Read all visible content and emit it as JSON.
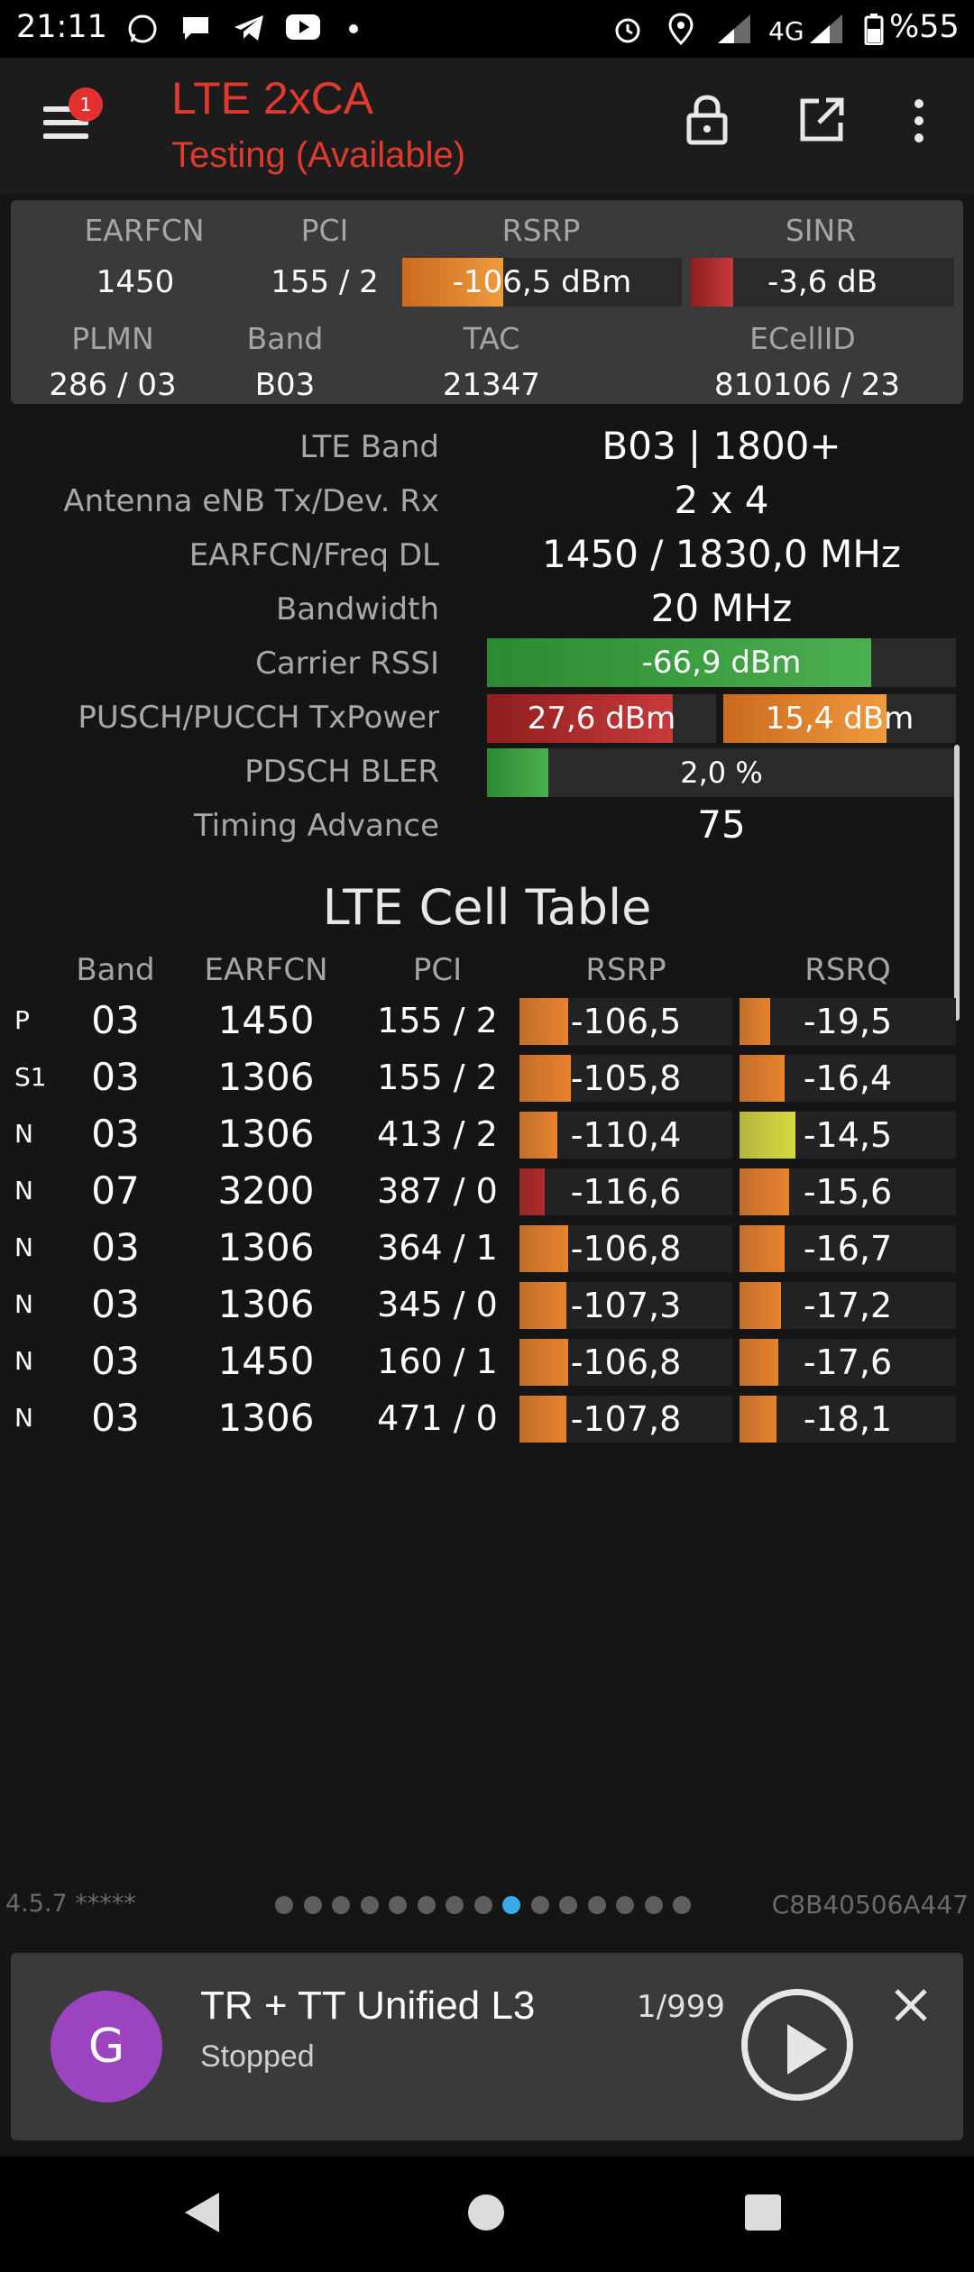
{
  "status_bar": {
    "time": "21:11",
    "network": "4G",
    "battery": "%55"
  },
  "app_bar": {
    "title": "LTE 2xCA",
    "subtitle": "Testing (Available)",
    "notification_count": "1"
  },
  "summary": {
    "headers": {
      "earfcn": "EARFCN",
      "pci": "PCI",
      "rsrp": "RSRP",
      "sinr": "SINR",
      "plmn": "PLMN",
      "band": "Band",
      "tac": "TAC",
      "ecellid": "ECellID"
    },
    "earfcn": "1450",
    "pci": "155 / 2",
    "rsrp": {
      "text": "-106,5 dBm",
      "level": 0.36
    },
    "sinr": {
      "text": "-3,6 dB",
      "level": 0.16
    },
    "plmn": "286 / 03",
    "band": "B03",
    "tac": "21347",
    "ecellid": "810106 / 23"
  },
  "details": {
    "lte_band": {
      "label": "LTE Band",
      "value": "B03 | 1800+"
    },
    "antenna": {
      "label": "Antenna eNB Tx/Dev. Rx",
      "value": "2 x 4"
    },
    "earfcn_freq": {
      "label": "EARFCN/Freq DL",
      "value": "1450 / 1830,0 MHz"
    },
    "bandwidth": {
      "label": "Bandwidth",
      "value": "20 MHz"
    },
    "carrier_rssi": {
      "label": "Carrier RSSI",
      "value": "-66,9 dBm",
      "level": 0.82
    },
    "txpower": {
      "label": "PUSCH/PUCCH TxPower",
      "pusch": "27,6 dBm",
      "pusch_level": 0.81,
      "pucch": "15,4 dBm",
      "pucch_level": 0.7
    },
    "pdsch_bler": {
      "label": "PDSCH BLER",
      "value": "2,0 %",
      "level": 0.13
    },
    "timing_advance": {
      "label": "Timing Advance",
      "value": "75"
    }
  },
  "cell_table": {
    "title": "LTE Cell Table",
    "headers": {
      "band": "Band",
      "earfcn": "EARFCN",
      "pci": "PCI",
      "rsrp": "RSRP",
      "rsrq": "RSRQ"
    },
    "rows": [
      {
        "type": "P",
        "band": "03",
        "earfcn": "1450",
        "pci": "155 / 2",
        "rsrp": "-106,5",
        "rsrp_level": 0.23,
        "rsrp_color": "#e8822e",
        "rsrq": "-19,5",
        "rsrq_level": 0.14,
        "rsrq_color": "#e8822e"
      },
      {
        "type": "S1",
        "band": "03",
        "earfcn": "1306",
        "pci": "155 / 2",
        "rsrp": "-105,8",
        "rsrp_level": 0.24,
        "rsrp_color": "#e8822e",
        "rsrq": "-16,4",
        "rsrq_level": 0.21,
        "rsrq_color": "#e8822e"
      },
      {
        "type": "N",
        "band": "03",
        "earfcn": "1306",
        "pci": "413 / 2",
        "rsrp": "-110,4",
        "rsrp_level": 0.18,
        "rsrp_color": "#e8822e",
        "rsrq": "-14,5",
        "rsrq_level": 0.26,
        "rsrq_color": "#d6da42"
      },
      {
        "type": "N",
        "band": "07",
        "earfcn": "3200",
        "pci": "387 / 0",
        "rsrp": "-116,6",
        "rsrp_level": 0.12,
        "rsrp_color": "#b02a2a",
        "rsrq": "-15,6",
        "rsrq_level": 0.23,
        "rsrq_color": "#e8822e"
      },
      {
        "type": "N",
        "band": "03",
        "earfcn": "1306",
        "pci": "364 / 1",
        "rsrp": "-106,8",
        "rsrp_level": 0.23,
        "rsrp_color": "#e8822e",
        "rsrq": "-16,7",
        "rsrq_level": 0.21,
        "rsrq_color": "#e8822e"
      },
      {
        "type": "N",
        "band": "03",
        "earfcn": "1306",
        "pci": "345 / 0",
        "rsrp": "-107,3",
        "rsrp_level": 0.22,
        "rsrp_color": "#e8822e",
        "rsrq": "-17,2",
        "rsrq_level": 0.19,
        "rsrq_color": "#e8822e"
      },
      {
        "type": "N",
        "band": "03",
        "earfcn": "1450",
        "pci": "160 / 1",
        "rsrp": "-106,8",
        "rsrp_level": 0.23,
        "rsrp_color": "#e8822e",
        "rsrq": "-17,6",
        "rsrq_level": 0.18,
        "rsrq_color": "#e8822e"
      },
      {
        "type": "N",
        "band": "03",
        "earfcn": "1306",
        "pci": "471 / 0",
        "rsrp": "-107,8",
        "rsrp_level": 0.22,
        "rsrp_color": "#e8822e",
        "rsrq": "-18,1",
        "rsrq_level": 0.17,
        "rsrq_color": "#e8822e"
      }
    ]
  },
  "footer": {
    "version": "4.5.7 *****",
    "device_id": "C8B40506A447",
    "page_count": 15,
    "active_page": 8
  },
  "notification": {
    "avatar_letter": "G",
    "title": "TR + TT Unified L3",
    "status": "Stopped",
    "count": "1/999"
  },
  "colors": {
    "accent_red": "#e03a2e",
    "dot_active": "#3aa9e8",
    "avatar_bg": "#9c44c0"
  },
  "icons": [
    "whatsapp-icon",
    "chat-icon",
    "telegram-icon",
    "youtube-icon",
    "alarm-icon",
    "location-icon",
    "signal-icon",
    "battery-icon",
    "menu-icon",
    "lock-icon",
    "open-external-icon",
    "more-vert-icon",
    "play-icon",
    "close-icon"
  ]
}
